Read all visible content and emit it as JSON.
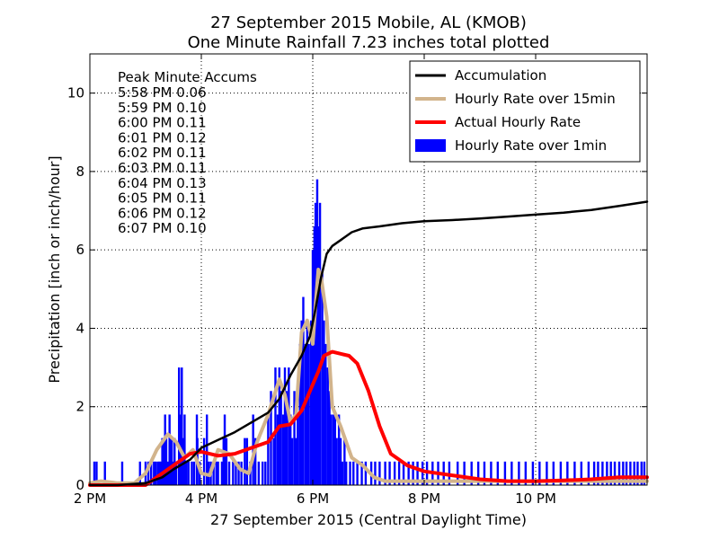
{
  "chart_data": {
    "type": "bar+line",
    "title": [
      "27 September 2015 Mobile, AL (KMOB)",
      "One Minute Rainfall 7.23 inches total plotted"
    ],
    "xlabel": "27 September 2015 (Central Daylight Time)",
    "ylabel": "Precipitation [inch or inch/hour]",
    "xlim": [
      14,
      24
    ],
    "ylim": [
      0,
      11
    ],
    "xticks": [
      {
        "value": 14,
        "label": "2 PM"
      },
      {
        "value": 16,
        "label": "4 PM"
      },
      {
        "value": 18,
        "label": "6 PM"
      },
      {
        "value": 20,
        "label": "8 PM"
      },
      {
        "value": 22,
        "label": "10 PM"
      }
    ],
    "yticks": [
      0,
      2,
      4,
      6,
      8,
      10
    ],
    "grid": true,
    "legend": {
      "placement": "top-right",
      "entries": [
        {
          "label": "Accumulation",
          "color": "#000000",
          "kind": "line"
        },
        {
          "label": "Hourly Rate over 15min",
          "color": "#d2b48c",
          "kind": "line"
        },
        {
          "label": "Actual Hourly Rate",
          "color": "#ff0000",
          "kind": "line"
        },
        {
          "label": "Hourly Rate over 1min",
          "color": "#0000ff",
          "kind": "patch"
        }
      ]
    },
    "annotation": {
      "title": "Peak Minute Accums",
      "lines": [
        "5:58 PM 0.06",
        "5:59 PM 0.10",
        "6:00 PM 0.11",
        "6:01 PM 0.12",
        "6:02 PM 0.11",
        "6:03 PM 0.11",
        "6:04 PM 0.13",
        "6:05 PM 0.11",
        "6:06 PM 0.12",
        "6:07 PM 0.10"
      ]
    },
    "series": [
      {
        "name": "Accumulation",
        "color": "#000000",
        "x": [
          14,
          14.5,
          15,
          15.3,
          15.5,
          15.8,
          16,
          16.3,
          16.6,
          16.9,
          17.2,
          17.4,
          17.6,
          17.8,
          17.95,
          18.05,
          18.15,
          18.25,
          18.35,
          18.5,
          18.7,
          18.9,
          19.2,
          19.6,
          20,
          20.5,
          21,
          21.5,
          22,
          22.5,
          23,
          23.5,
          24
        ],
        "y": [
          0,
          0,
          0.05,
          0.2,
          0.4,
          0.65,
          0.95,
          1.15,
          1.35,
          1.6,
          1.85,
          2.2,
          2.8,
          3.3,
          3.8,
          4.5,
          5.3,
          5.9,
          6.1,
          6.25,
          6.45,
          6.55,
          6.6,
          6.68,
          6.73,
          6.76,
          6.8,
          6.85,
          6.9,
          6.95,
          7.02,
          7.12,
          7.23
        ]
      },
      {
        "name": "Hourly Rate over 15min",
        "color": "#d2b48c",
        "x": [
          14,
          14.2,
          14.5,
          14.8,
          15,
          15.2,
          15.4,
          15.55,
          15.7,
          15.85,
          16,
          16.15,
          16.3,
          16.5,
          16.7,
          16.85,
          17,
          17.2,
          17.4,
          17.5,
          17.6,
          17.7,
          17.8,
          17.9,
          18,
          18.05,
          18.1,
          18.15,
          18.25,
          18.35,
          18.5,
          18.7,
          18.9,
          19.1,
          19.3,
          19.6,
          20,
          24
        ],
        "y": [
          0.05,
          0.1,
          0.05,
          0.05,
          0.3,
          0.9,
          1.3,
          1.1,
          0.7,
          0.9,
          0.3,
          0.25,
          0.9,
          0.8,
          0.4,
          0.3,
          1.1,
          1.8,
          2.7,
          2.3,
          1.6,
          1.8,
          3.9,
          4.2,
          3.6,
          4.6,
          5.5,
          5.3,
          4.3,
          2.0,
          1.5,
          0.7,
          0.5,
          0.2,
          0.1,
          0.1,
          0.1,
          0.1
        ]
      },
      {
        "name": "Actual Hourly Rate",
        "color": "#ff0000",
        "x": [
          14,
          14.5,
          15,
          15.2,
          15.4,
          15.6,
          15.8,
          16,
          16.3,
          16.6,
          16.9,
          17.2,
          17.4,
          17.6,
          17.8,
          17.95,
          18.1,
          18.2,
          18.35,
          18.5,
          18.65,
          18.8,
          19,
          19.2,
          19.4,
          19.7,
          20,
          20.5,
          21,
          21.5,
          22,
          22.5,
          23,
          23.5,
          24
        ],
        "y": [
          0,
          0,
          0,
          0.2,
          0.4,
          0.6,
          0.8,
          0.85,
          0.75,
          0.8,
          0.95,
          1.1,
          1.5,
          1.55,
          1.9,
          2.4,
          2.9,
          3.3,
          3.4,
          3.35,
          3.3,
          3.1,
          2.4,
          1.5,
          0.8,
          0.5,
          0.35,
          0.25,
          0.15,
          0.1,
          0.1,
          0.12,
          0.15,
          0.2,
          0.2
        ]
      },
      {
        "name": "Hourly Rate over 1min",
        "color": "#0000ff",
        "kind": "bars",
        "bars": [
          [
            14.08,
            0.6
          ],
          [
            14.12,
            0.6
          ],
          [
            14.27,
            0.6
          ],
          [
            14.58,
            0.6
          ],
          [
            14.9,
            0.6
          ],
          [
            15.0,
            0.6
          ],
          [
            15.05,
            0.6
          ],
          [
            15.1,
            0.6
          ],
          [
            15.15,
            0.6
          ],
          [
            15.18,
            0.6
          ],
          [
            15.22,
            0.6
          ],
          [
            15.25,
            0.6
          ],
          [
            15.27,
            0.6
          ],
          [
            15.3,
            1.2
          ],
          [
            15.33,
            1.2
          ],
          [
            15.35,
            1.8
          ],
          [
            15.37,
            1.2
          ],
          [
            15.4,
            0.6
          ],
          [
            15.43,
            1.8
          ],
          [
            15.45,
            1.2
          ],
          [
            15.47,
            1.2
          ],
          [
            15.5,
            0.6
          ],
          [
            15.52,
            1.2
          ],
          [
            15.55,
            0.6
          ],
          [
            15.6,
            3.0
          ],
          [
            15.63,
            1.8
          ],
          [
            15.65,
            3.0
          ],
          [
            15.67,
            1.2
          ],
          [
            15.7,
            1.8
          ],
          [
            15.73,
            0.6
          ],
          [
            15.77,
            0.6
          ],
          [
            15.83,
            0.6
          ],
          [
            15.87,
            0.6
          ],
          [
            15.92,
            1.8
          ],
          [
            15.93,
            1.2
          ],
          [
            15.97,
            0.6
          ],
          [
            16.05,
            1.2
          ],
          [
            16.1,
            1.8
          ],
          [
            16.13,
            0.6
          ],
          [
            16.17,
            0.6
          ],
          [
            16.22,
            0.6
          ],
          [
            16.27,
            0.6
          ],
          [
            16.3,
            0.6
          ],
          [
            16.37,
            0.6
          ],
          [
            16.4,
            1.2
          ],
          [
            16.42,
            1.8
          ],
          [
            16.45,
            1.2
          ],
          [
            16.5,
            0.6
          ],
          [
            16.57,
            0.6
          ],
          [
            16.62,
            0.6
          ],
          [
            16.67,
            0.6
          ],
          [
            16.72,
            0.6
          ],
          [
            16.78,
            1.2
          ],
          [
            16.82,
            1.2
          ],
          [
            16.88,
            0.6
          ],
          [
            16.93,
            1.8
          ],
          [
            16.97,
            1.2
          ],
          [
            17.03,
            0.6
          ],
          [
            17.1,
            0.6
          ],
          [
            17.15,
            0.6
          ],
          [
            17.2,
            1.8
          ],
          [
            17.25,
            2.4
          ],
          [
            17.3,
            1.2
          ],
          [
            17.33,
            3.0
          ],
          [
            17.37,
            1.8
          ],
          [
            17.4,
            3.0
          ],
          [
            17.43,
            2.4
          ],
          [
            17.47,
            1.8
          ],
          [
            17.5,
            3.0
          ],
          [
            17.53,
            2.4
          ],
          [
            17.57,
            3.0
          ],
          [
            17.6,
            1.8
          ],
          [
            17.63,
            1.2
          ],
          [
            17.67,
            2.4
          ],
          [
            17.7,
            1.2
          ],
          [
            17.73,
            1.8
          ],
          [
            17.77,
            3.6
          ],
          [
            17.8,
            4.2
          ],
          [
            17.83,
            4.8
          ],
          [
            17.87,
            3.6
          ],
          [
            17.9,
            4.2
          ],
          [
            17.93,
            3.6
          ],
          [
            17.97,
            4.2
          ],
          [
            18.0,
            6.0
          ],
          [
            18.03,
            6.6
          ],
          [
            18.05,
            7.2
          ],
          [
            18.08,
            7.8
          ],
          [
            18.1,
            6.6
          ],
          [
            18.13,
            7.2
          ],
          [
            18.17,
            5.4
          ],
          [
            18.2,
            4.2
          ],
          [
            18.23,
            3.6
          ],
          [
            18.27,
            3.0
          ],
          [
            18.3,
            2.4
          ],
          [
            18.33,
            1.8
          ],
          [
            18.37,
            1.8
          ],
          [
            18.4,
            1.8
          ],
          [
            18.43,
            1.2
          ],
          [
            18.47,
            1.8
          ],
          [
            18.5,
            1.2
          ],
          [
            18.53,
            0.6
          ],
          [
            18.57,
            1.2
          ],
          [
            18.6,
            0.6
          ],
          [
            18.67,
            0.6
          ],
          [
            18.73,
            0.6
          ],
          [
            18.8,
            0.6
          ],
          [
            18.88,
            0.6
          ],
          [
            18.95,
            0.6
          ],
          [
            19.05,
            0.6
          ],
          [
            19.12,
            0.6
          ],
          [
            19.2,
            0.6
          ],
          [
            19.3,
            0.6
          ],
          [
            19.38,
            0.6
          ],
          [
            19.47,
            0.6
          ],
          [
            19.55,
            0.6
          ],
          [
            19.63,
            0.6
          ],
          [
            19.72,
            0.6
          ],
          [
            19.8,
            0.6
          ],
          [
            19.88,
            0.6
          ],
          [
            19.97,
            0.6
          ],
          [
            20.05,
            0.6
          ],
          [
            20.15,
            0.6
          ],
          [
            20.25,
            0.6
          ],
          [
            20.35,
            0.6
          ],
          [
            20.45,
            0.6
          ],
          [
            20.6,
            0.6
          ],
          [
            20.72,
            0.6
          ],
          [
            20.85,
            0.6
          ],
          [
            20.97,
            0.6
          ],
          [
            21.08,
            0.6
          ],
          [
            21.2,
            0.6
          ],
          [
            21.32,
            0.6
          ],
          [
            21.45,
            0.6
          ],
          [
            21.57,
            0.6
          ],
          [
            21.7,
            0.6
          ],
          [
            21.82,
            0.6
          ],
          [
            21.95,
            0.6
          ],
          [
            22.07,
            0.6
          ],
          [
            22.2,
            0.6
          ],
          [
            22.32,
            0.6
          ],
          [
            22.45,
            0.6
          ],
          [
            22.57,
            0.6
          ],
          [
            22.7,
            0.6
          ],
          [
            22.82,
            0.6
          ],
          [
            22.95,
            0.6
          ],
          [
            23.05,
            0.6
          ],
          [
            23.12,
            0.6
          ],
          [
            23.2,
            0.6
          ],
          [
            23.28,
            0.6
          ],
          [
            23.35,
            0.6
          ],
          [
            23.42,
            0.6
          ],
          [
            23.5,
            0.6
          ],
          [
            23.57,
            0.6
          ],
          [
            23.63,
            0.6
          ],
          [
            23.7,
            0.6
          ],
          [
            23.77,
            0.6
          ],
          [
            23.83,
            0.6
          ],
          [
            23.9,
            0.6
          ],
          [
            23.95,
            0.6
          ]
        ]
      }
    ]
  }
}
